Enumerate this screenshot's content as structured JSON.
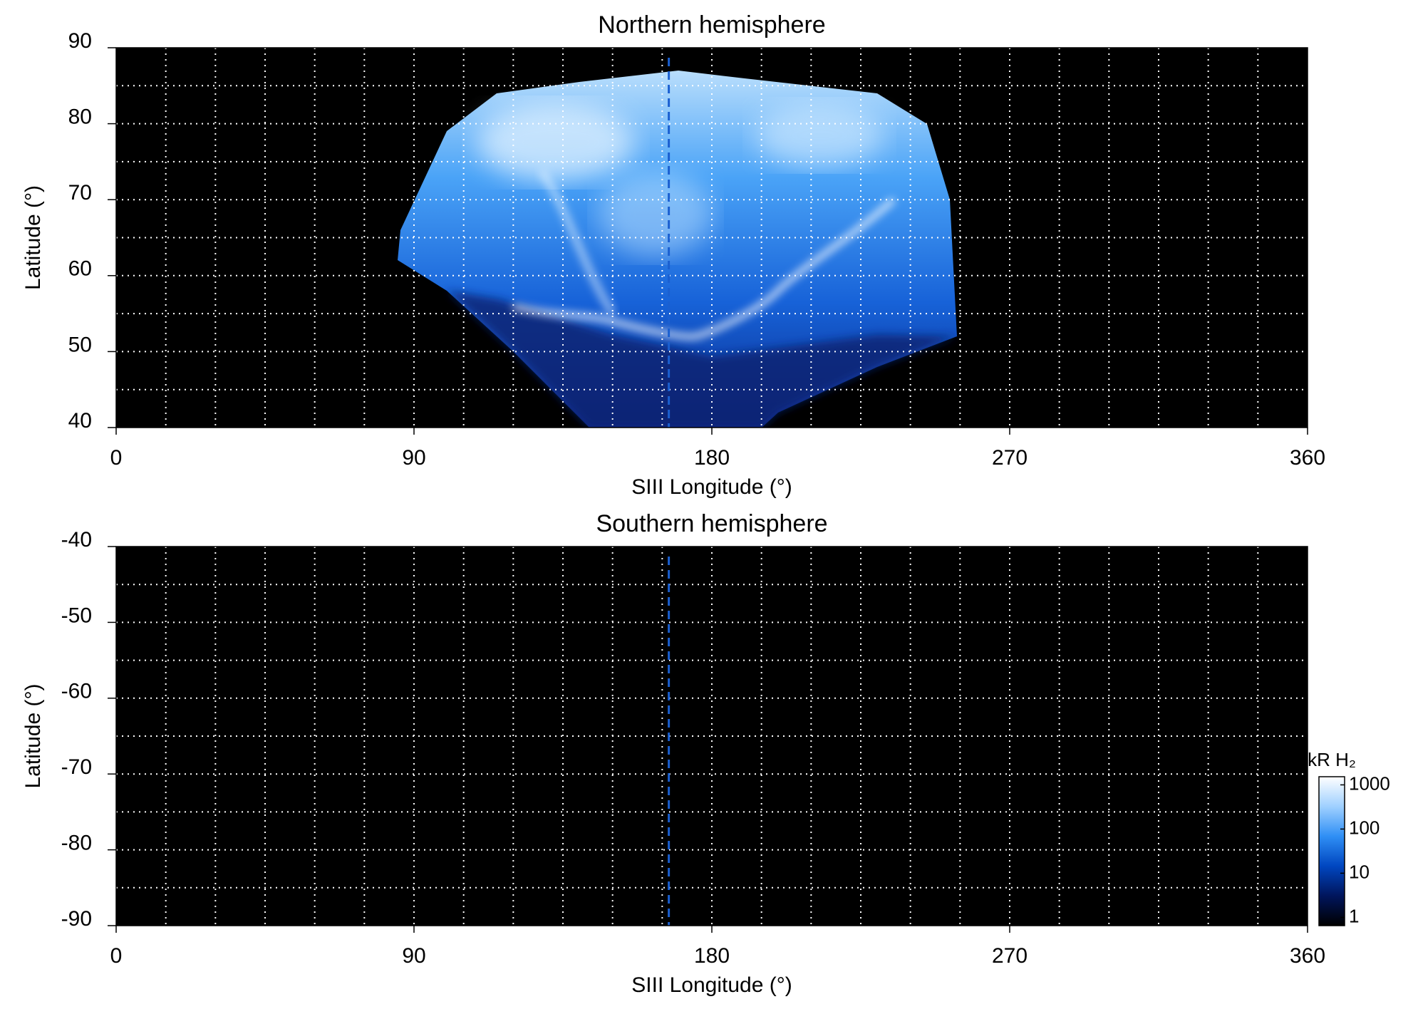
{
  "chart_data": [
    {
      "type": "map",
      "title": "Northern hemisphere",
      "xlabel": "SIII Longitude (°)",
      "ylabel": "Latitude (°)",
      "xlim": [
        0,
        360
      ],
      "xticks": [
        0,
        90,
        180,
        270,
        360
      ],
      "ylim": [
        40,
        90
      ],
      "yticks": [
        40,
        50,
        60,
        70,
        80,
        90
      ],
      "xgrid": [
        15,
        30,
        45,
        60,
        75,
        90,
        105,
        120,
        135,
        150,
        165,
        180,
        195,
        210,
        225,
        240,
        255,
        270,
        285,
        300,
        315,
        330,
        345
      ],
      "ygrid": [
        45,
        50,
        55,
        60,
        65,
        70,
        75,
        80,
        85
      ],
      "grid": true,
      "reference_longitude": 167,
      "reference_color": "#1a5fd0"
    },
    {
      "type": "map",
      "title": "Southern hemisphere",
      "xlabel": "SIII Longitude (°)",
      "ylabel": "Latitude (°)",
      "xlim": [
        0,
        360
      ],
      "xticks": [
        0,
        90,
        180,
        270,
        360
      ],
      "ylim": [
        -90,
        -40
      ],
      "yticks": [
        -90,
        -80,
        -70,
        -60,
        -50,
        -40
      ],
      "xgrid": [
        15,
        30,
        45,
        60,
        75,
        90,
        105,
        120,
        135,
        150,
        165,
        180,
        195,
        210,
        225,
        240,
        255,
        270,
        285,
        300,
        315,
        330,
        345
      ],
      "ygrid": [
        -85,
        -80,
        -75,
        -70,
        -65,
        -60,
        -55,
        -50,
        -45
      ],
      "grid": true,
      "reference_longitude": 167,
      "reference_color": "#1a5fd0",
      "colorbar": {
        "label": "kR H₂",
        "scale": "log",
        "lim": [
          0.65,
          1530
        ],
        "ticks": [
          1,
          10,
          100,
          1000
        ],
        "colormap": [
          "#000000",
          "#00155c",
          "#0046c0",
          "#2f8ff5",
          "#9fd0ff",
          "#ffffff"
        ]
      }
    }
  ]
}
